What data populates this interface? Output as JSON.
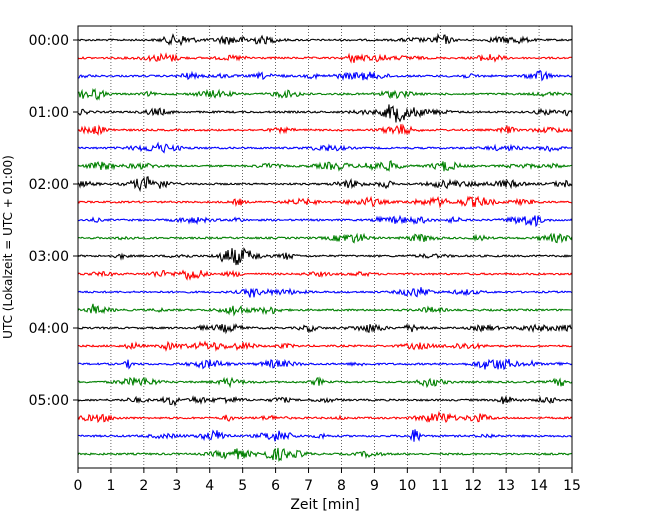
{
  "chart_data": {
    "type": "line",
    "title": "",
    "xlabel": "Zeit  [min]",
    "ylabel": "UTC (Lokalzeit = UTC + 01:00)",
    "xlim": [
      0,
      15
    ],
    "x_ticks": [
      "0",
      "1",
      "2",
      "3",
      "4",
      "5",
      "6",
      "7",
      "8",
      "9",
      "10",
      "11",
      "12",
      "13",
      "14",
      "15"
    ],
    "y_ticks": [
      "00:00",
      "01:00",
      "02:00",
      "03:00",
      "04:00",
      "05:00"
    ],
    "trace_interval_min": 15,
    "trace_count": 24,
    "trace_colors": [
      "#000000",
      "#ff0000",
      "#0000ff",
      "#008000"
    ],
    "grid": "vertical dotted lines at each minute",
    "legend": "none"
  }
}
